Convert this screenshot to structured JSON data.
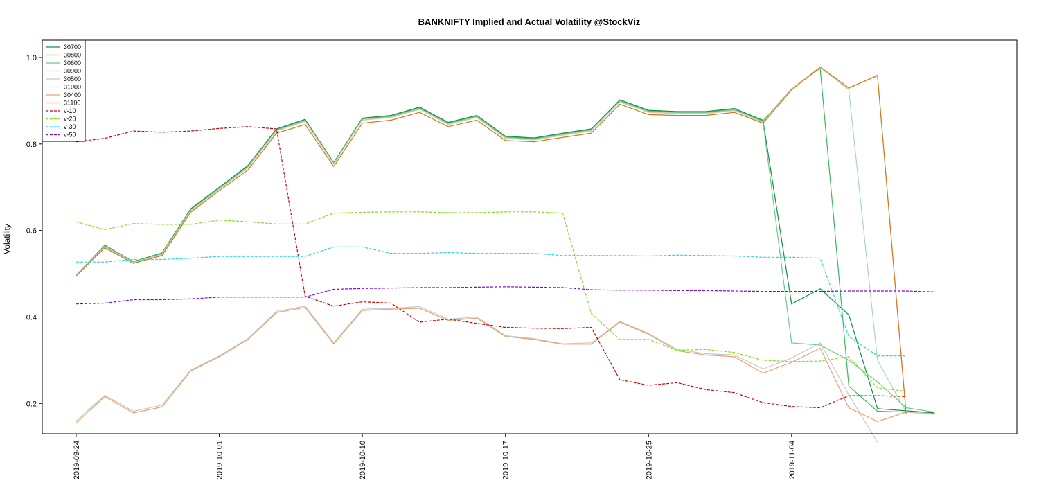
{
  "chart_data": {
    "type": "line",
    "title": "BANKNIFTY Implied and Actual Volatility @StockViz",
    "ylabel": "Volatility",
    "xlabel": "",
    "ylim": [
      0.13,
      1.04
    ],
    "yticks": [
      "0.2",
      "0.4",
      "0.6",
      "0.8",
      "1.0"
    ],
    "x": [
      "2019-09-24",
      "2019-09-25",
      "2019-09-26",
      "2019-09-27",
      "2019-09-30",
      "2019-10-01",
      "2019-10-03",
      "2019-10-04",
      "2019-10-07",
      "2019-10-09",
      "2019-10-10",
      "2019-10-11",
      "2019-10-14",
      "2019-10-15",
      "2019-10-16",
      "2019-10-17",
      "2019-10-18",
      "2019-10-22",
      "2019-10-23",
      "2019-10-24",
      "2019-10-25",
      "2019-10-29",
      "2019-10-30",
      "2019-10-31",
      "2019-11-01",
      "2019-11-04",
      "2019-11-05",
      "2019-11-06",
      "2019-11-07",
      "2019-11-08",
      "2019-11-11",
      "2019-11-13",
      "2019-11-14"
    ],
    "xticks": [
      "2019-09-24",
      "2019-10-01",
      "2019-10-10",
      "2019-10-17",
      "2019-10-25",
      "2019-11-04"
    ],
    "legend_position": "top-left",
    "grid": false,
    "series": [
      {
        "name": "30700",
        "color": "#109040",
        "dash": "",
        "values": [
          0.497,
          0.566,
          0.528,
          0.548,
          0.65,
          0.7,
          0.75,
          0.835,
          0.857,
          0.757,
          0.86,
          0.866,
          0.885,
          0.85,
          0.866,
          0.818,
          0.814,
          0.825,
          0.835,
          0.902,
          0.878,
          0.875,
          0.875,
          0.882,
          0.855,
          0.43,
          0.465,
          0.405,
          0.188,
          0.183,
          0.178,
          null,
          null
        ]
      },
      {
        "name": "30800",
        "color": "#38b858",
        "dash": "",
        "values": [
          0.497,
          0.565,
          0.527,
          0.547,
          0.648,
          0.698,
          0.748,
          0.833,
          0.855,
          0.756,
          0.858,
          0.864,
          0.883,
          0.848,
          0.864,
          0.816,
          0.812,
          0.823,
          0.833,
          0.9,
          0.876,
          0.873,
          0.873,
          0.88,
          0.853,
          0.928,
          0.975,
          0.24,
          0.182,
          0.18,
          0.176,
          null,
          null
        ]
      },
      {
        "name": "30600",
        "color": "#70c88a",
        "dash": "",
        "values": [
          0.497,
          0.564,
          0.527,
          0.546,
          0.647,
          0.697,
          0.747,
          0.832,
          0.854,
          0.755,
          0.857,
          0.863,
          0.882,
          0.847,
          0.863,
          0.815,
          0.811,
          0.822,
          0.832,
          0.899,
          0.875,
          0.872,
          0.872,
          0.879,
          0.852,
          0.34,
          0.335,
          0.3,
          0.25,
          0.19,
          0.18,
          null,
          null
        ]
      },
      {
        "name": "30900",
        "color": "#a8d8b8",
        "dash": "",
        "values": [
          0.497,
          0.563,
          0.526,
          0.545,
          0.646,
          0.696,
          0.746,
          0.831,
          0.853,
          0.754,
          0.856,
          0.862,
          0.881,
          0.846,
          0.862,
          0.814,
          0.81,
          0.821,
          0.831,
          0.898,
          0.874,
          0.871,
          0.871,
          0.878,
          0.851,
          0.928,
          0.977,
          0.925,
          0.3,
          0.18,
          0.175,
          null,
          null
        ]
      },
      {
        "name": "30500",
        "color": "#c8c8c8",
        "dash": "",
        "values": [
          0.16,
          0.219,
          0.182,
          0.196,
          0.277,
          0.31,
          0.35,
          0.413,
          0.425,
          0.34,
          0.418,
          0.42,
          0.424,
          0.395,
          0.4,
          0.357,
          0.35,
          0.338,
          0.34,
          0.39,
          0.362,
          0.325,
          0.315,
          0.312,
          0.28,
          0.305,
          0.34,
          0.22,
          0.11,
          null,
          null,
          null,
          null
        ]
      },
      {
        "name": "31000",
        "color": "#e0c4b0",
        "dash": "",
        "values": [
          0.497,
          0.562,
          0.526,
          0.544,
          0.645,
          0.695,
          0.745,
          0.83,
          0.852,
          0.753,
          0.855,
          0.861,
          0.88,
          0.845,
          0.861,
          0.813,
          0.809,
          0.82,
          0.83,
          0.897,
          0.873,
          0.87,
          0.87,
          0.877,
          0.85,
          0.928,
          0.976,
          0.928,
          0.96,
          0.18,
          0.175,
          null,
          null
        ]
      },
      {
        "name": "30400",
        "color": "#e8a070",
        "dash": "",
        "values": [
          0.155,
          0.216,
          0.178,
          0.192,
          0.275,
          0.308,
          0.348,
          0.41,
          0.422,
          0.338,
          0.415,
          0.418,
          0.42,
          0.392,
          0.397,
          0.355,
          0.348,
          0.337,
          0.337,
          0.388,
          0.36,
          0.322,
          0.312,
          0.308,
          0.27,
          0.295,
          0.328,
          0.19,
          0.158,
          0.18,
          null,
          null,
          null
        ]
      },
      {
        "name": "31100",
        "color": "#d07818",
        "dash": "",
        "values": [
          0.495,
          0.56,
          0.524,
          0.542,
          0.642,
          0.692,
          0.74,
          0.825,
          0.845,
          0.748,
          0.848,
          0.855,
          0.873,
          0.84,
          0.855,
          0.808,
          0.805,
          0.815,
          0.825,
          0.892,
          0.868,
          0.866,
          0.866,
          0.873,
          0.848,
          0.925,
          0.978,
          0.93,
          0.958,
          0.175,
          null,
          null,
          null
        ]
      },
      {
        "name": "v-10",
        "color": "#cc0000",
        "dash": "4,2",
        "values": [
          0.805,
          0.813,
          0.83,
          0.827,
          0.83,
          0.836,
          0.84,
          0.835,
          0.448,
          0.425,
          0.435,
          0.432,
          0.388,
          0.395,
          0.385,
          0.376,
          0.374,
          0.373,
          0.376,
          0.255,
          0.242,
          0.248,
          0.232,
          0.225,
          0.202,
          0.193,
          0.19,
          0.218,
          0.218,
          0.216,
          null,
          null,
          null
        ]
      },
      {
        "name": "v-20",
        "color": "#80e020",
        "dash": "4,2",
        "values": [
          0.62,
          0.602,
          0.616,
          0.614,
          0.614,
          0.624,
          0.62,
          0.615,
          0.615,
          0.64,
          0.642,
          0.643,
          0.643,
          0.641,
          0.641,
          0.643,
          0.643,
          0.64,
          0.408,
          0.348,
          0.348,
          0.323,
          0.325,
          0.318,
          0.3,
          0.297,
          0.298,
          0.308,
          0.236,
          0.228,
          null,
          null,
          null
        ]
      },
      {
        "name": "v-30",
        "color": "#20d8e0",
        "dash": "4,2",
        "values": [
          0.527,
          0.527,
          0.533,
          0.533,
          0.536,
          0.54,
          0.54,
          0.54,
          0.54,
          0.562,
          0.562,
          0.547,
          0.547,
          0.549,
          0.547,
          0.547,
          0.547,
          0.542,
          0.542,
          0.542,
          0.541,
          0.543,
          0.542,
          0.541,
          0.538,
          0.538,
          0.536,
          0.355,
          0.31,
          0.31,
          null,
          null,
          null
        ]
      },
      {
        "name": "v-50",
        "color": "#8000e0",
        "dash": "4,2",
        "values": [
          0.43,
          0.432,
          0.44,
          0.44,
          0.442,
          0.446,
          0.446,
          0.446,
          0.446,
          0.464,
          0.466,
          0.467,
          0.468,
          0.468,
          0.469,
          0.47,
          0.469,
          0.468,
          0.463,
          0.462,
          0.462,
          0.461,
          0.461,
          0.46,
          0.459,
          0.459,
          0.459,
          0.46,
          0.46,
          0.46,
          0.458,
          null,
          null
        ]
      }
    ]
  }
}
